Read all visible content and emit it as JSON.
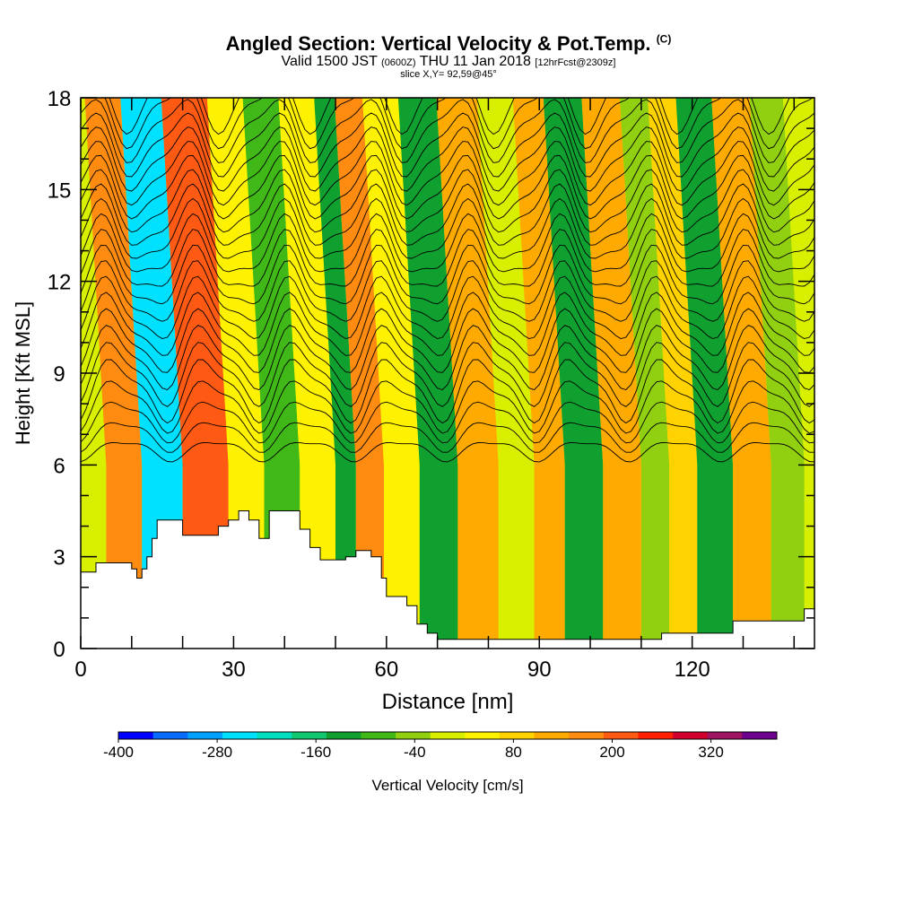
{
  "header": {
    "title_main": "Angled Section: Vertical Velocity & Pot.Temp.",
    "title_tag": "(C)",
    "valid_prefix": "Valid 1500 JST",
    "valid_utc": "(0600Z)",
    "valid_date": "THU 11 Jan 2018",
    "forecast_info": "[12hrFcst@2309z]",
    "slice_info": "slice X,Y= 92,59@45°"
  },
  "chart_data": {
    "type": "heatmap",
    "xlabel": "Distance [nm]",
    "ylabel": "Height [Kft MSL]",
    "xlim": [
      0,
      144
    ],
    "ylim": [
      0,
      18
    ],
    "xticks": [
      0,
      30,
      60,
      90,
      120
    ],
    "yticks": [
      0,
      3,
      6,
      9,
      12,
      15,
      18
    ],
    "colorbar": {
      "label": "Vertical Velocity [cm/s]",
      "ticks": [
        -400,
        -280,
        -160,
        -40,
        80,
        200,
        320
      ],
      "range": [
        -400,
        400
      ],
      "colors": [
        "#0000ff",
        "#0a6cff",
        "#00a0ff",
        "#00e0ff",
        "#00e0c0",
        "#10c870",
        "#10a030",
        "#40b818",
        "#90d010",
        "#d8ef00",
        "#fff200",
        "#ffd200",
        "#ffaa00",
        "#ff8c10",
        "#ff5a14",
        "#ff2000",
        "#d2002d",
        "#a01464",
        "#6e0090"
      ]
    },
    "vertical_velocity_bands": [
      {
        "center_nm": 8,
        "value_cm_s": 150
      },
      {
        "center_nm": 16,
        "value_cm_s": -260
      },
      {
        "center_nm": 24,
        "value_cm_s": 220
      },
      {
        "center_nm": 34,
        "value_cm_s": 60
      },
      {
        "center_nm": 38,
        "value_cm_s": -100
      },
      {
        "center_nm": 48,
        "value_cm_s": 60
      },
      {
        "center_nm": 52,
        "value_cm_s": -120
      },
      {
        "center_nm": 56,
        "value_cm_s": 150
      },
      {
        "center_nm": 63,
        "value_cm_s": 40
      },
      {
        "center_nm": 70,
        "value_cm_s": -120
      },
      {
        "center_nm": 78,
        "value_cm_s": 140
      },
      {
        "center_nm": 86,
        "value_cm_s": -20
      },
      {
        "center_nm": 92,
        "value_cm_s": 120
      },
      {
        "center_nm": 98,
        "value_cm_s": -120
      },
      {
        "center_nm": 107,
        "value_cm_s": 140
      },
      {
        "center_nm": 113,
        "value_cm_s": -30
      },
      {
        "center_nm": 118,
        "value_cm_s": 100
      },
      {
        "center_nm": 124,
        "value_cm_s": -140
      },
      {
        "center_nm": 132,
        "value_cm_s": 120
      },
      {
        "center_nm": 139,
        "value_cm_s": -40
      }
    ],
    "terrain_kft": [
      [
        0,
        2.5
      ],
      [
        3,
        2.8
      ],
      [
        8,
        2.8
      ],
      [
        10,
        2.6
      ],
      [
        11,
        2.3
      ],
      [
        12,
        2.6
      ],
      [
        13,
        3.0
      ],
      [
        14,
        3.6
      ],
      [
        15,
        4.2
      ],
      [
        18,
        4.2
      ],
      [
        20,
        3.7
      ],
      [
        25,
        3.7
      ],
      [
        27,
        4.0
      ],
      [
        29,
        4.2
      ],
      [
        31,
        4.5
      ],
      [
        33,
        4.2
      ],
      [
        35,
        3.6
      ],
      [
        37,
        4.5
      ],
      [
        41,
        4.5
      ],
      [
        43,
        3.9
      ],
      [
        45,
        3.3
      ],
      [
        47,
        2.9
      ],
      [
        50,
        2.9
      ],
      [
        52,
        3.0
      ],
      [
        54,
        3.2
      ],
      [
        57,
        3.0
      ],
      [
        59,
        2.3
      ],
      [
        60,
        1.7
      ],
      [
        64,
        1.4
      ],
      [
        66,
        0.8
      ],
      [
        68,
        0.5
      ],
      [
        70,
        0.3
      ],
      [
        112,
        0.3
      ],
      [
        114,
        0.5
      ],
      [
        118,
        0.5
      ],
      [
        128,
        0.9
      ],
      [
        139,
        0.9
      ],
      [
        142,
        1.3
      ],
      [
        144,
        1.3
      ]
    ]
  }
}
